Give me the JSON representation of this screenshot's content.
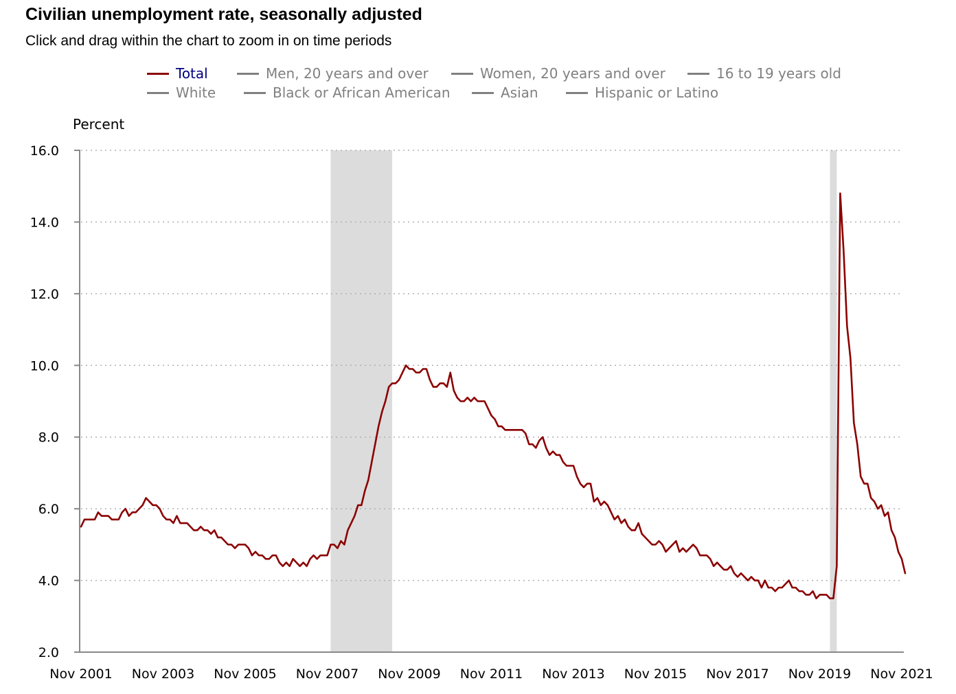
{
  "header": {
    "title": "Civilian unemployment rate, seasonally adjusted",
    "subtitle": "Click and drag within the chart to zoom in on time periods"
  },
  "legend": [
    {
      "label": "Total",
      "active": true
    },
    {
      "label": "Men, 20 years and over",
      "active": false
    },
    {
      "label": "Women, 20 years and over",
      "active": false
    },
    {
      "label": "16 to 19 years old",
      "active": false
    },
    {
      "label": "White",
      "active": false
    },
    {
      "label": "Black or African American",
      "active": false
    },
    {
      "label": "Asian",
      "active": false
    },
    {
      "label": "Hispanic or Latino",
      "active": false
    }
  ],
  "colors": {
    "series_total": "#8b0000",
    "legend_inactive": "#808080",
    "legend_active_text": "#000080",
    "recession_band": "#dcdcdc",
    "grid": "#b0b0b0"
  },
  "chart_data": {
    "type": "line",
    "ylabel": "Percent",
    "ylim": [
      2.0,
      16.0
    ],
    "y_ticks": [
      "2.0",
      "4.0",
      "6.0",
      "8.0",
      "10.0",
      "12.0",
      "14.0",
      "16.0"
    ],
    "x_ticks": [
      "Nov 2001",
      "Nov 2003",
      "Nov 2005",
      "Nov 2007",
      "Nov 2009",
      "Nov 2011",
      "Nov 2013",
      "Nov 2015",
      "Nov 2017",
      "Nov 2019",
      "Nov 2021"
    ],
    "x_start": "2001-11",
    "x_end": "2021-11",
    "grid": "horizontal dotted",
    "recession_shading": [
      {
        "start": "2007-12",
        "end": "2009-06"
      },
      {
        "start": "2020-02",
        "end": "2020-04"
      }
    ],
    "series": [
      {
        "name": "Total",
        "start": "2001-11",
        "frequency": "monthly",
        "values": [
          5.5,
          5.7,
          5.7,
          5.7,
          5.7,
          5.9,
          5.8,
          5.8,
          5.8,
          5.7,
          5.7,
          5.7,
          5.9,
          6.0,
          5.8,
          5.9,
          5.9,
          6.0,
          6.1,
          6.3,
          6.2,
          6.1,
          6.1,
          6.0,
          5.8,
          5.7,
          5.7,
          5.6,
          5.8,
          5.6,
          5.6,
          5.6,
          5.5,
          5.4,
          5.4,
          5.5,
          5.4,
          5.4,
          5.3,
          5.4,
          5.2,
          5.2,
          5.1,
          5.0,
          5.0,
          4.9,
          5.0,
          5.0,
          5.0,
          4.9,
          4.7,
          4.8,
          4.7,
          4.7,
          4.6,
          4.6,
          4.7,
          4.7,
          4.5,
          4.4,
          4.5,
          4.4,
          4.6,
          4.5,
          4.4,
          4.5,
          4.4,
          4.6,
          4.7,
          4.6,
          4.7,
          4.7,
          4.7,
          5.0,
          5.0,
          4.9,
          5.1,
          5.0,
          5.4,
          5.6,
          5.8,
          6.1,
          6.1,
          6.5,
          6.8,
          7.3,
          7.8,
          8.3,
          8.7,
          9.0,
          9.4,
          9.5,
          9.5,
          9.6,
          9.8,
          10.0,
          9.9,
          9.9,
          9.8,
          9.8,
          9.9,
          9.9,
          9.6,
          9.4,
          9.4,
          9.5,
          9.5,
          9.4,
          9.8,
          9.3,
          9.1,
          9.0,
          9.0,
          9.1,
          9.0,
          9.1,
          9.0,
          9.0,
          9.0,
          8.8,
          8.6,
          8.5,
          8.3,
          8.3,
          8.2,
          8.2,
          8.2,
          8.2,
          8.2,
          8.2,
          8.1,
          7.8,
          7.8,
          7.7,
          7.9,
          8.0,
          7.7,
          7.5,
          7.6,
          7.5,
          7.5,
          7.3,
          7.2,
          7.2,
          7.2,
          6.9,
          6.7,
          6.6,
          6.7,
          6.7,
          6.2,
          6.3,
          6.1,
          6.2,
          6.1,
          5.9,
          5.7,
          5.8,
          5.6,
          5.7,
          5.5,
          5.4,
          5.4,
          5.6,
          5.3,
          5.2,
          5.1,
          5.0,
          5.0,
          5.1,
          5.0,
          4.8,
          4.9,
          5.0,
          5.1,
          4.8,
          4.9,
          4.8,
          4.9,
          5.0,
          4.9,
          4.7,
          4.7,
          4.7,
          4.6,
          4.4,
          4.5,
          4.4,
          4.3,
          4.3,
          4.4,
          4.2,
          4.1,
          4.2,
          4.1,
          4.0,
          4.1,
          4.0,
          4.0,
          3.8,
          4.0,
          3.8,
          3.8,
          3.7,
          3.8,
          3.8,
          3.9,
          4.0,
          3.8,
          3.8,
          3.7,
          3.7,
          3.6,
          3.6,
          3.7,
          3.5,
          3.6,
          3.6,
          3.6,
          3.5,
          3.5,
          4.4,
          14.8,
          13.2,
          11.1,
          10.2,
          8.4,
          7.8,
          6.9,
          6.7,
          6.7,
          6.3,
          6.2,
          6.0,
          6.1,
          5.8,
          5.9,
          5.4,
          5.2,
          4.8,
          4.6,
          4.2
        ]
      }
    ]
  }
}
